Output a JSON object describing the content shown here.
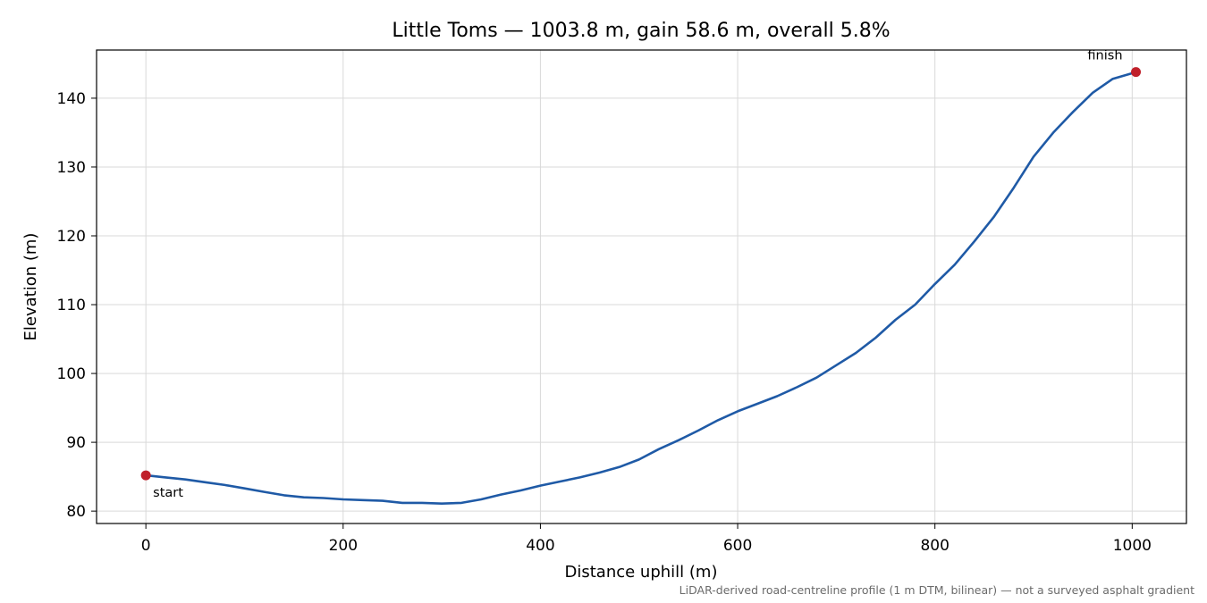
{
  "chart_data": {
    "type": "line",
    "title": "Little Toms — 1003.8 m, gain 58.6 m, overall 5.8%",
    "xlabel": "Distance uphill (m)",
    "ylabel": "Elevation (m)",
    "xlim": [
      -50,
      1055
    ],
    "ylim": [
      78.2,
      147
    ],
    "xticks": [
      0,
      200,
      400,
      600,
      800,
      1000
    ],
    "yticks": [
      80,
      90,
      100,
      110,
      120,
      130,
      140
    ],
    "grid": true,
    "footnote": "LiDAR-derived road-centreline profile (1 m DTM, bilinear) — not a surveyed asphalt gradient",
    "line_color": "#1f5aa6",
    "marker_color": "#c0202a",
    "series": [
      {
        "x": [
          0,
          20,
          40,
          60,
          80,
          100,
          120,
          140,
          160,
          180,
          200,
          220,
          240,
          260,
          280,
          300,
          320,
          340,
          360,
          380,
          400,
          420,
          440,
          460,
          480,
          500,
          520,
          540,
          560,
          580,
          600,
          620,
          640,
          660,
          680,
          700,
          720,
          740,
          760,
          780,
          800,
          820,
          840,
          860,
          880,
          900,
          920,
          940,
          960,
          980,
          1003.8
        ],
        "y": [
          85.2,
          84.9,
          84.6,
          84.2,
          83.8,
          83.3,
          82.8,
          82.3,
          82.0,
          81.9,
          81.7,
          81.6,
          81.5,
          81.2,
          81.2,
          81.1,
          81.2,
          81.7,
          82.4,
          83.0,
          83.7,
          84.3,
          84.9,
          85.6,
          86.4,
          87.5,
          89.0,
          90.3,
          91.7,
          93.2,
          94.5,
          95.6,
          96.7,
          98.0,
          99.4,
          101.2,
          103.0,
          105.2,
          107.8,
          110.0,
          113.0,
          115.8,
          119.2,
          122.8,
          127.0,
          131.5,
          135.0,
          138.0,
          140.8,
          142.8,
          143.8
        ]
      }
    ],
    "annotations": [
      {
        "text": "start",
        "x": 0,
        "y": 85.2
      },
      {
        "text": "finish",
        "x": 1003.8,
        "y": 143.8
      }
    ]
  }
}
